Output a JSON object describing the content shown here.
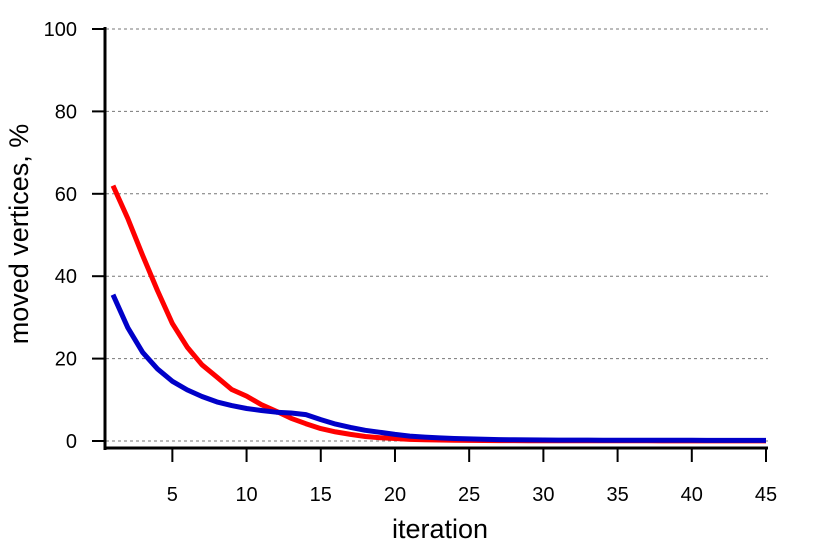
{
  "chart_data": {
    "type": "line",
    "title": "",
    "xlabel": "iteration",
    "ylabel": "moved vertices, %",
    "xlim": [
      0.5,
      45
    ],
    "ylim": [
      -2,
      100
    ],
    "xticks": [
      5,
      10,
      15,
      20,
      25,
      30,
      35,
      40,
      45
    ],
    "yticks": [
      0,
      20,
      40,
      60,
      80,
      100
    ],
    "grid": "horizontal dotted",
    "legend": "none",
    "series": [
      {
        "color": "#ff0000",
        "x": [
          1,
          2,
          3,
          4,
          5,
          6,
          7,
          8,
          9,
          10,
          11,
          12,
          13,
          14,
          15,
          16,
          17,
          18,
          19,
          20,
          21,
          22,
          23,
          24,
          25,
          26,
          27,
          28,
          29,
          30,
          31,
          32,
          33,
          34,
          35,
          36,
          37,
          38,
          39,
          40,
          41,
          42,
          43,
          44,
          45
        ],
        "values": [
          62,
          54,
          45,
          36.5,
          28.5,
          22.8,
          18.5,
          15.5,
          12.5,
          10.9,
          8.8,
          7.2,
          5.5,
          4.2,
          3.0,
          2.2,
          1.6,
          1.1,
          0.8,
          0.6,
          0.4,
          0.3,
          0.25,
          0.2,
          0.15,
          0.12,
          0.1,
          0.1,
          0.08,
          0.07,
          0.06,
          0.05,
          0.05,
          0.05,
          0.04,
          0.04,
          0.04,
          0.03,
          0.03,
          0.03,
          0.03,
          0.03,
          0.03,
          0.03,
          0.03
        ]
      },
      {
        "color": "#0000c8",
        "x": [
          1,
          2,
          3,
          4,
          5,
          6,
          7,
          8,
          9,
          10,
          11,
          12,
          13,
          14,
          15,
          16,
          17,
          18,
          19,
          20,
          21,
          22,
          23,
          24,
          25,
          26,
          27,
          28,
          29,
          30,
          31,
          32,
          33,
          34,
          35,
          36,
          37,
          38,
          39,
          40,
          41,
          42,
          43,
          44,
          45
        ],
        "values": [
          35.5,
          27.5,
          21.5,
          17.5,
          14.5,
          12.4,
          10.8,
          9.5,
          8.6,
          7.9,
          7.4,
          7.0,
          6.8,
          6.4,
          5.2,
          4.1,
          3.3,
          2.6,
          2.1,
          1.6,
          1.2,
          0.95,
          0.75,
          0.6,
          0.5,
          0.42,
          0.35,
          0.3,
          0.27,
          0.25,
          0.23,
          0.22,
          0.21,
          0.2,
          0.2,
          0.2,
          0.19,
          0.18,
          0.17,
          0.16,
          0.15,
          0.15,
          0.15,
          0.15,
          0.15
        ]
      }
    ]
  }
}
